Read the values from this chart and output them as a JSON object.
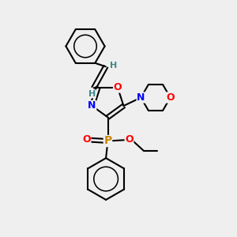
{
  "bg_color": "#efefef",
  "bond_color": "#000000",
  "bond_width": 1.5,
  "atom_colors": {
    "N": "#0000ff",
    "O": "#ff0000",
    "P": "#cc8800",
    "H_vinyl": "#3a8a8a",
    "C": "#000000"
  }
}
